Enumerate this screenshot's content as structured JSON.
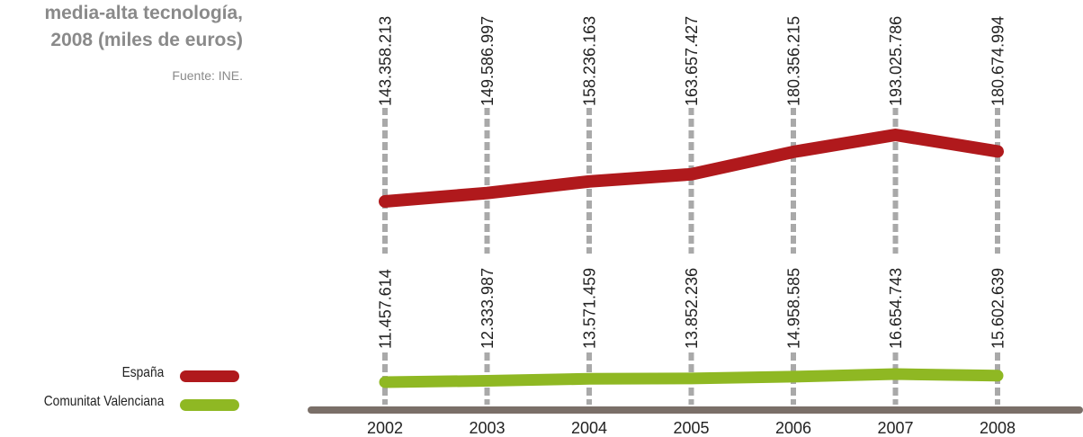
{
  "header": {
    "title_lines": [
      "media-alta tecnología,",
      "2008 (miles de euros)"
    ],
    "source": "Fuente: INE."
  },
  "colors": {
    "espana": "#b0191c",
    "valenciana": "#8fb823",
    "axis": "#7a6f68",
    "grid": "#a9a9a9",
    "text": "#222222"
  },
  "legend": {
    "items": [
      {
        "label": "España",
        "color_key": "espana"
      },
      {
        "label": "Comunitat Valenciana",
        "color_key": "valenciana"
      }
    ]
  },
  "chart_data": {
    "type": "line",
    "categories": [
      "2002",
      "2003",
      "2004",
      "2005",
      "2006",
      "2007",
      "2008"
    ],
    "series": [
      {
        "name": "España",
        "values": [
          143358213,
          149586997,
          158236163,
          163657427,
          180356215,
          193025786,
          180674994
        ],
        "labels": [
          "143.358.213",
          "149.586.997",
          "158.236.163",
          "163.657.427",
          "180.356.215",
          "193.025.786",
          "180.674.994"
        ]
      },
      {
        "name": "Comunitat Valenciana",
        "values": [
          11457614,
          12333987,
          13571459,
          13852236,
          14958585,
          16654743,
          15602639
        ],
        "labels": [
          "11.457.614",
          "12.333.987",
          "13.571.459",
          "13.852.236",
          "14.958.585",
          "16.654.743",
          "15.602.639"
        ]
      }
    ],
    "grid": "vertical dashed lines at each year",
    "legend_position": "bottom-left"
  }
}
